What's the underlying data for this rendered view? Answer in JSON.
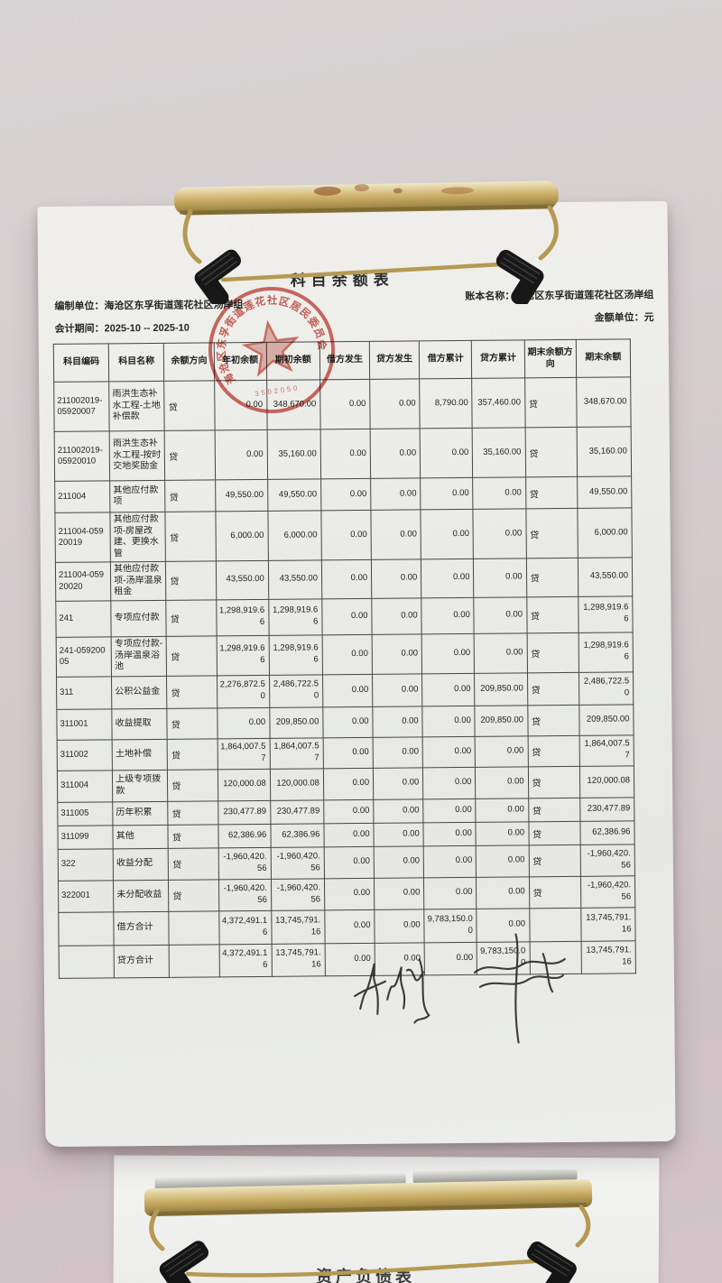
{
  "colors": {
    "stamp_red": "#c23b2e",
    "paper": "#ecebe8",
    "background": "#d4cccd",
    "clip_gold": "#c8ab62",
    "table_line": "#454545"
  },
  "document": {
    "title": "科目余额表",
    "prepared_by_label": "编制单位：",
    "prepared_by": "海沧区东孚街道莲花社区汤岸组",
    "period_label": "会计期间：",
    "period": "2025-10 -- 2025-10",
    "book_name_label": "账本名称：",
    "book_name": "海沧区东孚街道莲花社区汤岸组",
    "unit_label": "金额单位：元"
  },
  "stamp": {
    "ring_text": "海沧区东孚街道莲花社区居民委员会",
    "serial": "3502050"
  },
  "table": {
    "headers": [
      "科目编码",
      "科目名称",
      "余额方向",
      "年初余额",
      "期初余额",
      "借方发生",
      "贷方发生",
      "借方累计",
      "贷方累计",
      "期末余额方向",
      "期末余额"
    ],
    "rows": [
      [
        "211002019-05920007",
        "雨洪生态补水工程-土地补偿款",
        "贷",
        "0.00",
        "348,670.00",
        "0.00",
        "0.00",
        "8,790.00",
        "357,460.00",
        "贷",
        "348,670.00"
      ],
      [
        "211002019-05920010",
        "雨洪生态补水工程-按时交地奖励金",
        "贷",
        "0.00",
        "35,160.00",
        "0.00",
        "0.00",
        "0.00",
        "35,160.00",
        "贷",
        "35,160.00"
      ],
      [
        "211004",
        "其他应付款项",
        "贷",
        "49,550.00",
        "49,550.00",
        "0.00",
        "0.00",
        "0.00",
        "0.00",
        "贷",
        "49,550.00"
      ],
      [
        "211004-05920019",
        "其他应付款项-房屋改建、更换水管",
        "贷",
        "6,000.00",
        "6,000.00",
        "0.00",
        "0.00",
        "0.00",
        "0.00",
        "贷",
        "6,000.00"
      ],
      [
        "211004-05920020",
        "其他应付款项-汤岸温泉租金",
        "贷",
        "43,550.00",
        "43,550.00",
        "0.00",
        "0.00",
        "0.00",
        "0.00",
        "贷",
        "43,550.00"
      ],
      [
        "241",
        "专项应付款",
        "贷",
        "1,298,919.66",
        "1,298,919.66",
        "0.00",
        "0.00",
        "0.00",
        "0.00",
        "贷",
        "1,298,919.66"
      ],
      [
        "241-05920005",
        "专项应付款-汤岸温泉浴池",
        "贷",
        "1,298,919.66",
        "1,298,919.66",
        "0.00",
        "0.00",
        "0.00",
        "0.00",
        "贷",
        "1,298,919.66"
      ],
      [
        "311",
        "公积公益金",
        "贷",
        "2,276,872.50",
        "2,486,722.50",
        "0.00",
        "0.00",
        "0.00",
        "209,850.00",
        "贷",
        "2,486,722.50"
      ],
      [
        "311001",
        "收益提取",
        "贷",
        "0.00",
        "209,850.00",
        "0.00",
        "0.00",
        "0.00",
        "209,850.00",
        "贷",
        "209,850.00"
      ],
      [
        "311002",
        "土地补偿",
        "贷",
        "1,864,007.57",
        "1,864,007.57",
        "0.00",
        "0.00",
        "0.00",
        "0.00",
        "贷",
        "1,864,007.57"
      ],
      [
        "311004",
        "上级专项拨款",
        "贷",
        "120,000.08",
        "120,000.08",
        "0.00",
        "0.00",
        "0.00",
        "0.00",
        "贷",
        "120,000.08"
      ],
      [
        "311005",
        "历年积累",
        "贷",
        "230,477.89",
        "230,477.89",
        "0.00",
        "0.00",
        "0.00",
        "0.00",
        "贷",
        "230,477.89"
      ],
      [
        "311099",
        "其他",
        "贷",
        "62,386.96",
        "62,386.96",
        "0.00",
        "0.00",
        "0.00",
        "0.00",
        "贷",
        "62,386.96"
      ],
      [
        "322",
        "收益分配",
        "贷",
        "-1,960,420.56",
        "-1,960,420.56",
        "0.00",
        "0.00",
        "0.00",
        "0.00",
        "贷",
        "-1,960,420.56"
      ],
      [
        "322001",
        "未分配收益",
        "贷",
        "-1,960,420.56",
        "-1,960,420.56",
        "0.00",
        "0.00",
        "0.00",
        "0.00",
        "贷",
        "-1,960,420.56"
      ],
      [
        "",
        "借方合计",
        "",
        "4,372,491.16",
        "13,745,791.16",
        "0.00",
        "0.00",
        "9,783,150.00",
        "0.00",
        "",
        "13,745,791.16"
      ],
      [
        "",
        "贷方合计",
        "",
        "4,372,491.16",
        "13,745,791.16",
        "0.00",
        "0.00",
        "0.00",
        "9,783,150.00",
        "",
        "13,745,791.16"
      ]
    ]
  },
  "bottom_sheet": {
    "partial_title": "资产负债表"
  }
}
